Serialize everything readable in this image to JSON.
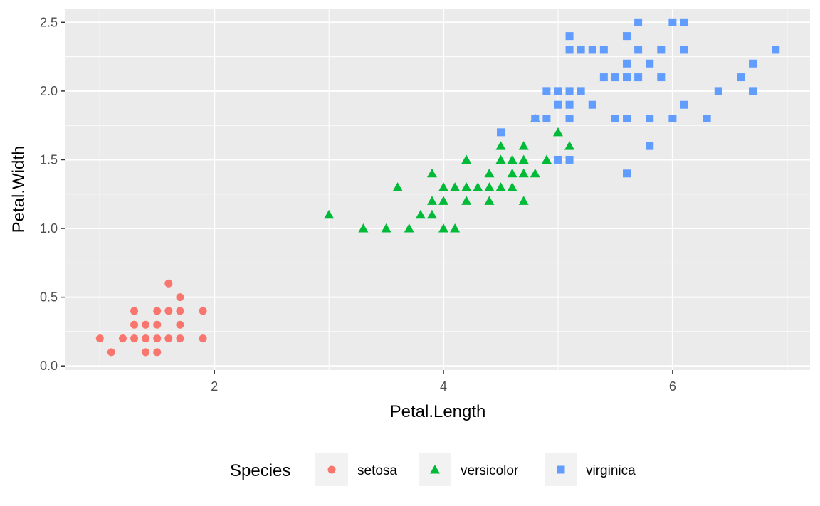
{
  "chart_data": {
    "type": "scatter",
    "title": "",
    "xlabel": "Petal.Length",
    "ylabel": "Petal.Width",
    "xlim": [
      0.7,
      7.2
    ],
    "ylim": [
      -0.03,
      2.6
    ],
    "x_ticks": [
      2,
      4,
      6
    ],
    "x_tick_labels": [
      "2",
      "4",
      "6"
    ],
    "y_ticks": [
      0,
      0.5,
      1,
      1.5,
      2,
      2.5
    ],
    "y_tick_labels": [
      "0.0",
      "0.5",
      "1.0",
      "1.5",
      "2.0",
      "2.5"
    ],
    "grid": true,
    "legend": {
      "title": "Species",
      "position": "bottom"
    },
    "series": [
      {
        "name": "setosa",
        "shape": "circle",
        "color": "#F8766D",
        "points": [
          [
            1.0,
            0.2
          ],
          [
            1.1,
            0.1
          ],
          [
            1.2,
            0.2
          ],
          [
            1.3,
            0.2
          ],
          [
            1.3,
            0.3
          ],
          [
            1.3,
            0.4
          ],
          [
            1.4,
            0.1
          ],
          [
            1.4,
            0.2
          ],
          [
            1.4,
            0.3
          ],
          [
            1.5,
            0.1
          ],
          [
            1.5,
            0.2
          ],
          [
            1.5,
            0.3
          ],
          [
            1.5,
            0.4
          ],
          [
            1.6,
            0.2
          ],
          [
            1.6,
            0.4
          ],
          [
            1.6,
            0.6
          ],
          [
            1.7,
            0.2
          ],
          [
            1.7,
            0.3
          ],
          [
            1.7,
            0.4
          ],
          [
            1.7,
            0.5
          ],
          [
            1.9,
            0.2
          ],
          [
            1.9,
            0.4
          ]
        ]
      },
      {
        "name": "versicolor",
        "shape": "triangle",
        "color": "#00BA38",
        "points": [
          [
            3.0,
            1.1
          ],
          [
            3.3,
            1.0
          ],
          [
            3.5,
            1.0
          ],
          [
            3.6,
            1.3
          ],
          [
            3.7,
            1.0
          ],
          [
            3.8,
            1.1
          ],
          [
            3.9,
            1.1
          ],
          [
            3.9,
            1.2
          ],
          [
            3.9,
            1.4
          ],
          [
            4.0,
            1.0
          ],
          [
            4.0,
            1.2
          ],
          [
            4.0,
            1.3
          ],
          [
            4.1,
            1.0
          ],
          [
            4.1,
            1.3
          ],
          [
            4.2,
            1.2
          ],
          [
            4.2,
            1.3
          ],
          [
            4.2,
            1.5
          ],
          [
            4.3,
            1.3
          ],
          [
            4.4,
            1.2
          ],
          [
            4.4,
            1.3
          ],
          [
            4.4,
            1.4
          ],
          [
            4.5,
            1.3
          ],
          [
            4.5,
            1.5
          ],
          [
            4.5,
            1.6
          ],
          [
            4.6,
            1.3
          ],
          [
            4.6,
            1.4
          ],
          [
            4.6,
            1.5
          ],
          [
            4.7,
            1.2
          ],
          [
            4.7,
            1.4
          ],
          [
            4.7,
            1.5
          ],
          [
            4.7,
            1.6
          ],
          [
            4.8,
            1.4
          ],
          [
            4.8,
            1.8
          ],
          [
            4.9,
            1.5
          ],
          [
            5.0,
            1.7
          ],
          [
            5.1,
            1.6
          ]
        ]
      },
      {
        "name": "virginica",
        "shape": "square",
        "color": "#619CFF",
        "points": [
          [
            4.5,
            1.7
          ],
          [
            4.8,
            1.8
          ],
          [
            4.9,
            1.8
          ],
          [
            4.9,
            2.0
          ],
          [
            5.0,
            1.5
          ],
          [
            5.0,
            1.9
          ],
          [
            5.0,
            2.0
          ],
          [
            5.1,
            1.5
          ],
          [
            5.1,
            1.8
          ],
          [
            5.1,
            1.9
          ],
          [
            5.1,
            2.0
          ],
          [
            5.1,
            2.3
          ],
          [
            5.1,
            2.4
          ],
          [
            5.2,
            2.0
          ],
          [
            5.2,
            2.3
          ],
          [
            5.3,
            1.9
          ],
          [
            5.3,
            2.3
          ],
          [
            5.4,
            2.1
          ],
          [
            5.4,
            2.3
          ],
          [
            5.5,
            1.8
          ],
          [
            5.5,
            2.1
          ],
          [
            5.6,
            1.4
          ],
          [
            5.6,
            1.8
          ],
          [
            5.6,
            2.1
          ],
          [
            5.6,
            2.2
          ],
          [
            5.6,
            2.4
          ],
          [
            5.7,
            2.1
          ],
          [
            5.7,
            2.3
          ],
          [
            5.7,
            2.5
          ],
          [
            5.8,
            1.6
          ],
          [
            5.8,
            1.8
          ],
          [
            5.8,
            2.2
          ],
          [
            5.9,
            2.1
          ],
          [
            5.9,
            2.3
          ],
          [
            6.0,
            1.8
          ],
          [
            6.0,
            2.5
          ],
          [
            6.1,
            1.9
          ],
          [
            6.1,
            2.3
          ],
          [
            6.1,
            2.5
          ],
          [
            6.3,
            1.8
          ],
          [
            6.4,
            2.0
          ],
          [
            6.6,
            2.1
          ],
          [
            6.7,
            2.0
          ],
          [
            6.7,
            2.2
          ],
          [
            6.9,
            2.3
          ]
        ]
      }
    ]
  }
}
